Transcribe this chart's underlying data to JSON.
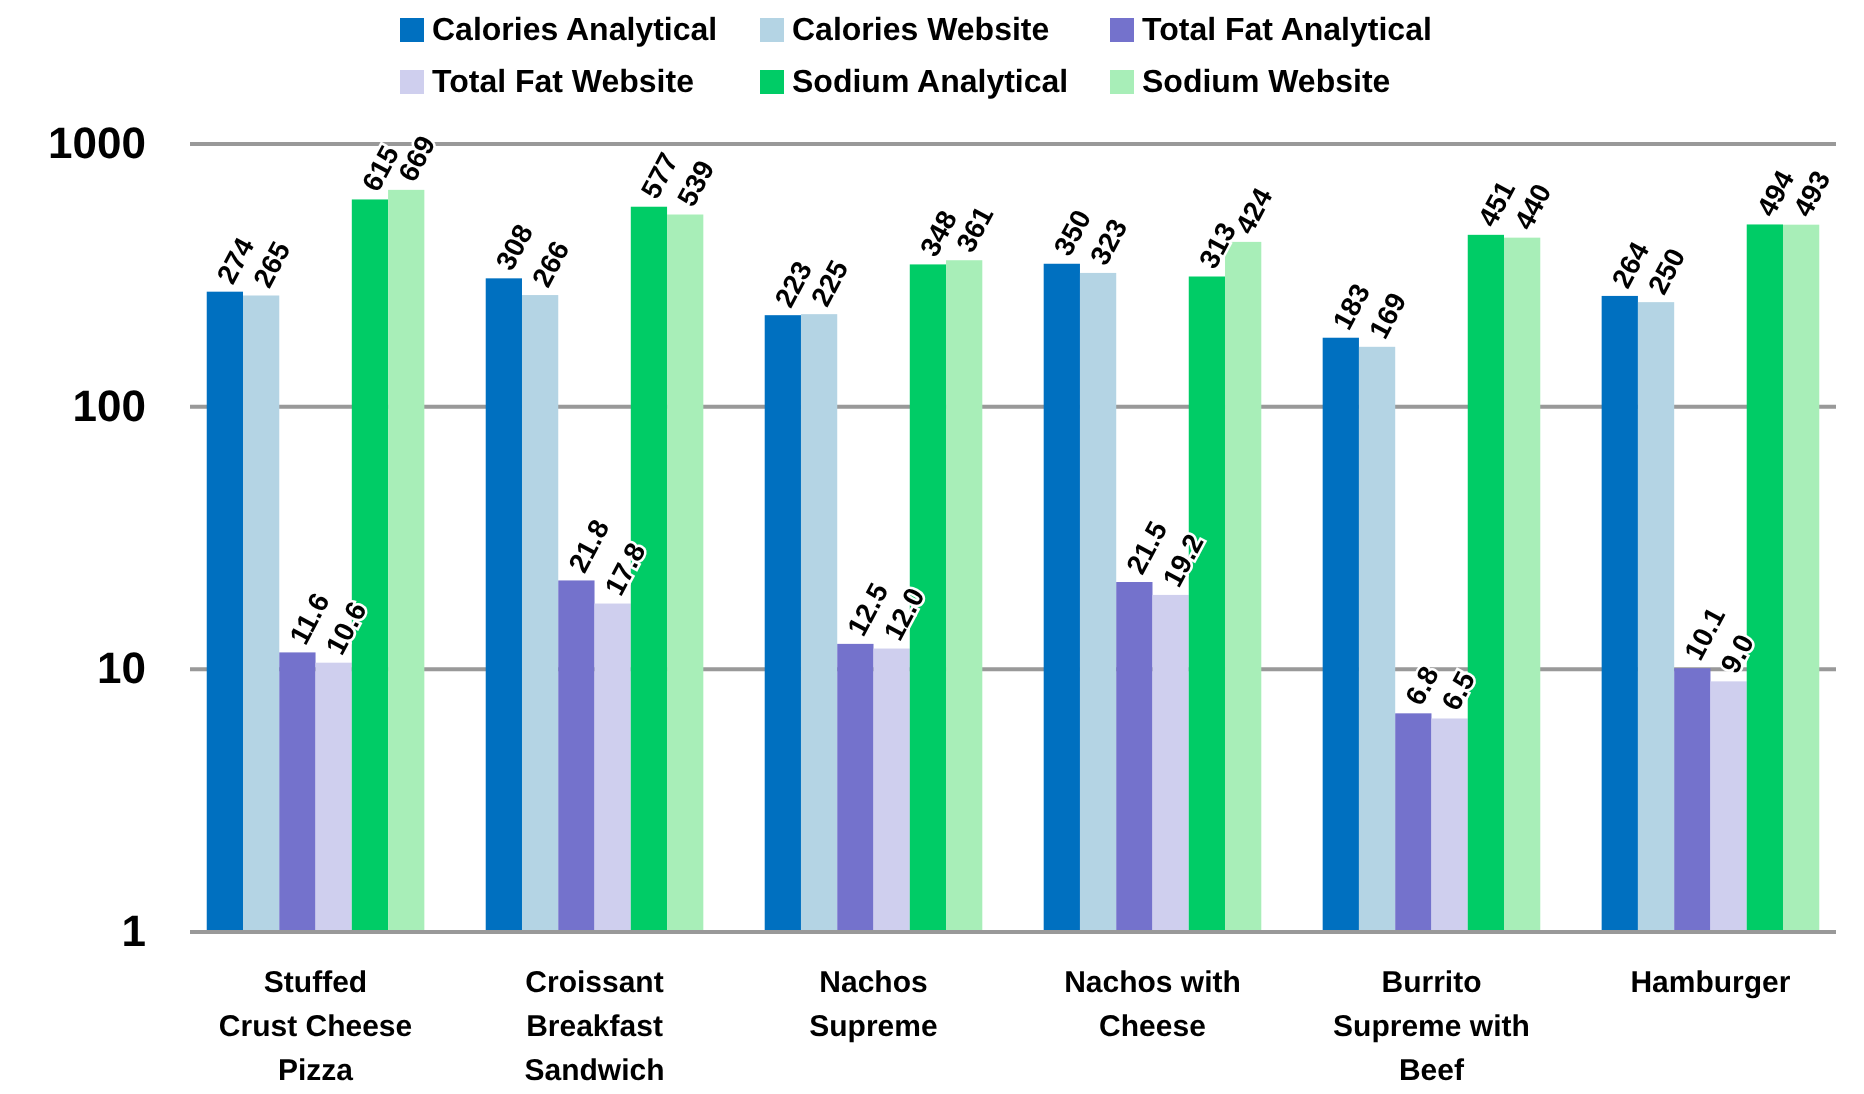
{
  "chart_data": {
    "type": "bar",
    "categories": [
      "Stuffed Crust Cheese Pizza",
      "Croissant Breakfast Sandwich",
      "Nachos Supreme",
      "Nachos with Cheese",
      "Burrito Supreme with Beef",
      "Hamburger"
    ],
    "series": [
      {
        "name": "Calories Analytical",
        "color": "#0070c0",
        "values": [
          274,
          308,
          223,
          350,
          183,
          264
        ]
      },
      {
        "name": "Calories Website",
        "color": "#b4d4e4",
        "values": [
          265,
          266,
          225,
          323,
          169,
          250
        ]
      },
      {
        "name": "Total Fat Analytical",
        "color": "#7472cc",
        "values": [
          11.6,
          21.8,
          12.5,
          21.5,
          6.8,
          10.1
        ]
      },
      {
        "name": "Total Fat Website",
        "color": "#cfcfee",
        "values": [
          10.6,
          17.8,
          12.0,
          19.2,
          6.5,
          9.0
        ],
        "value_labels": [
          "10.6",
          "17.8",
          "12.0",
          "19.2",
          "6.5",
          "9.0"
        ]
      },
      {
        "name": "Sodium Analytical",
        "color": "#00cc66",
        "values": [
          615,
          577,
          348,
          313,
          451,
          494
        ]
      },
      {
        "name": "Sodium Website",
        "color": "#a8eeb8",
        "values": [
          669,
          539,
          361,
          424,
          440,
          493
        ]
      }
    ],
    "log": true,
    "ylim": [
      1,
      1000
    ],
    "yticks": [
      1,
      10,
      100,
      1000
    ],
    "grid": "y",
    "legend": "top",
    "data_labels": true
  }
}
